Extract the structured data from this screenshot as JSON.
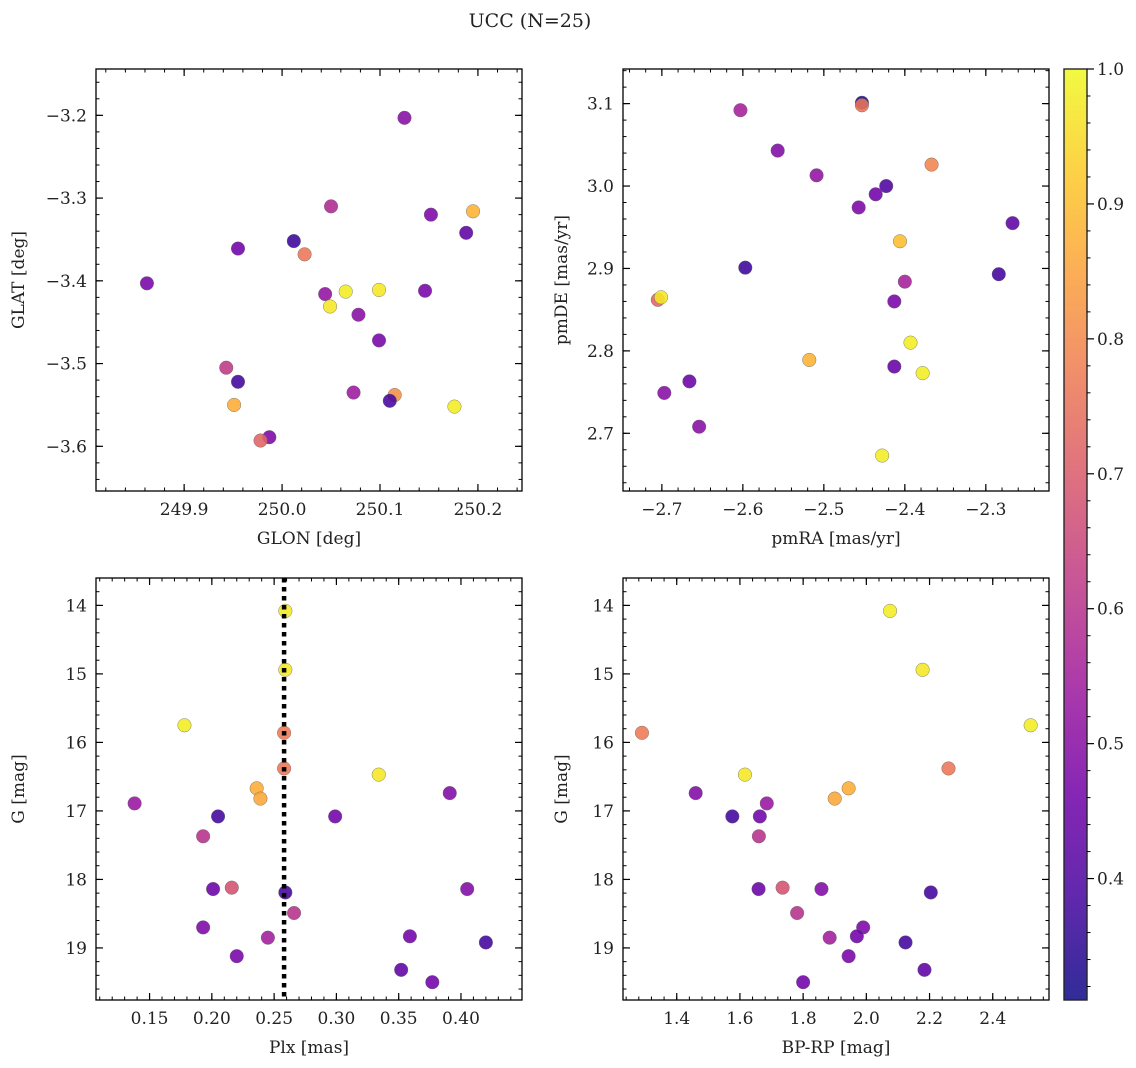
{
  "title": "UCC (N=25)",
  "colorbar": {
    "colormap": "plasma",
    "range": [
      0.31,
      1.0
    ],
    "ticks": [
      0.4,
      0.5,
      0.6,
      0.7,
      0.8,
      0.9,
      1.0
    ],
    "tick_labels": [
      "0.4",
      "0.5",
      "0.6",
      "0.7",
      "0.8",
      "0.9",
      "1.0"
    ]
  },
  "chart_data": [
    {
      "type": "scatter",
      "xlabel": "GLON [deg]",
      "ylabel": "GLAT [deg]",
      "xlim": [
        249.81,
        250.245
      ],
      "ylim": [
        -3.654,
        -3.144
      ],
      "xticks": [
        249.9,
        250.0,
        250.1,
        250.2
      ],
      "xtick_labels": [
        "249.9",
        "250.0",
        "250.1",
        "250.2"
      ],
      "yticks": [
        -3.6,
        -3.5,
        -3.4,
        -3.3,
        -3.2
      ],
      "ytick_labels": [
        "−3.6",
        "−3.5",
        "−3.4",
        "−3.3",
        "−3.2"
      ],
      "points": [
        {
          "x": 250.125,
          "y": -3.203,
          "c": 0.5
        },
        {
          "x": 250.05,
          "y": -3.31,
          "c": 0.58
        },
        {
          "x": 250.195,
          "y": -3.316,
          "c": 0.88
        },
        {
          "x": 250.152,
          "y": -3.32,
          "c": 0.48
        },
        {
          "x": 250.188,
          "y": -3.342,
          "c": 0.43
        },
        {
          "x": 250.012,
          "y": -3.352,
          "c": 0.37
        },
        {
          "x": 249.955,
          "y": -3.361,
          "c": 0.46
        },
        {
          "x": 250.023,
          "y": -3.368,
          "c": 0.76
        },
        {
          "x": 249.862,
          "y": -3.403,
          "c": 0.47
        },
        {
          "x": 250.099,
          "y": -3.411,
          "c": 0.97
        },
        {
          "x": 250.146,
          "y": -3.412,
          "c": 0.47
        },
        {
          "x": 250.065,
          "y": -3.413,
          "c": 0.98
        },
        {
          "x": 250.044,
          "y": -3.416,
          "c": 0.52
        },
        {
          "x": 250.049,
          "y": -3.431,
          "c": 0.97
        },
        {
          "x": 250.078,
          "y": -3.441,
          "c": 0.5
        },
        {
          "x": 250.099,
          "y": -3.472,
          "c": 0.47
        },
        {
          "x": 249.943,
          "y": -3.505,
          "c": 0.62
        },
        {
          "x": 249.955,
          "y": -3.522,
          "c": 0.38
        },
        {
          "x": 250.073,
          "y": -3.535,
          "c": 0.54
        },
        {
          "x": 250.115,
          "y": -3.538,
          "c": 0.81
        },
        {
          "x": 250.11,
          "y": -3.545,
          "c": 0.39
        },
        {
          "x": 249.951,
          "y": -3.55,
          "c": 0.87
        },
        {
          "x": 250.176,
          "y": -3.552,
          "c": 0.98
        },
        {
          "x": 249.987,
          "y": -3.589,
          "c": 0.48
        },
        {
          "x": 249.978,
          "y": -3.593,
          "c": 0.72
        }
      ]
    },
    {
      "type": "scatter",
      "xlabel": "pmRA [mas/yr]",
      "ylabel": "pmDE [mas/yr]",
      "xlim": [
        -2.748,
        -2.222
      ],
      "ylim": [
        2.63,
        3.142
      ],
      "xticks": [
        -2.7,
        -2.6,
        -2.5,
        -2.4,
        -2.3
      ],
      "xtick_labels": [
        "−2.7",
        "−2.6",
        "−2.5",
        "−2.4",
        "−2.3"
      ],
      "yticks": [
        2.7,
        2.8,
        2.9,
        3.0,
        3.1
      ],
      "ytick_labels": [
        "2.7",
        "2.8",
        "2.9",
        "3.0",
        "3.1"
      ],
      "points": [
        {
          "x": -2.453,
          "y": 3.101,
          "c": 0.33
        },
        {
          "x": -2.453,
          "y": 3.098,
          "c": 0.76
        },
        {
          "x": -2.603,
          "y": 3.092,
          "c": 0.56
        },
        {
          "x": -2.557,
          "y": 3.043,
          "c": 0.49
        },
        {
          "x": -2.367,
          "y": 3.026,
          "c": 0.79
        },
        {
          "x": -2.509,
          "y": 3.013,
          "c": 0.52
        },
        {
          "x": -2.423,
          "y": 3.0,
          "c": 0.4
        },
        {
          "x": -2.436,
          "y": 2.99,
          "c": 0.46
        },
        {
          "x": -2.457,
          "y": 2.974,
          "c": 0.48
        },
        {
          "x": -2.267,
          "y": 2.955,
          "c": 0.43
        },
        {
          "x": -2.406,
          "y": 2.933,
          "c": 0.9
        },
        {
          "x": -2.597,
          "y": 2.901,
          "c": 0.37
        },
        {
          "x": -2.284,
          "y": 2.893,
          "c": 0.38
        },
        {
          "x": -2.4,
          "y": 2.884,
          "c": 0.56
        },
        {
          "x": -2.705,
          "y": 2.862,
          "c": 0.72
        },
        {
          "x": -2.701,
          "y": 2.865,
          "c": 0.97
        },
        {
          "x": -2.413,
          "y": 2.86,
          "c": 0.47
        },
        {
          "x": -2.393,
          "y": 2.81,
          "c": 0.98
        },
        {
          "x": -2.518,
          "y": 2.789,
          "c": 0.88
        },
        {
          "x": -2.413,
          "y": 2.781,
          "c": 0.44
        },
        {
          "x": -2.378,
          "y": 2.773,
          "c": 0.98
        },
        {
          "x": -2.666,
          "y": 2.763,
          "c": 0.45
        },
        {
          "x": -2.697,
          "y": 2.749,
          "c": 0.5
        },
        {
          "x": -2.654,
          "y": 2.708,
          "c": 0.5
        },
        {
          "x": -2.428,
          "y": 2.673,
          "c": 0.98
        }
      ]
    },
    {
      "type": "scatter",
      "xlabel": "Plx [mas]",
      "ylabel": "G [mag]",
      "xlim": [
        0.107,
        0.449
      ],
      "ylim": [
        19.76,
        13.6
      ],
      "y_inverted": true,
      "vline": {
        "x": 0.258,
        "style": "dotted",
        "color": "#000000"
      },
      "xticks": [
        0.15,
        0.2,
        0.25,
        0.3,
        0.35,
        0.4
      ],
      "xtick_labels": [
        "0.15",
        "0.20",
        "0.25",
        "0.30",
        "0.35",
        "0.40"
      ],
      "yticks": [
        14,
        15,
        16,
        17,
        18,
        19
      ],
      "ytick_labels": [
        "14",
        "15",
        "16",
        "17",
        "18",
        "19"
      ],
      "points": [
        {
          "x": 0.259,
          "y": 14.08,
          "c": 0.98
        },
        {
          "x": 0.259,
          "y": 14.94,
          "c": 0.97
        },
        {
          "x": 0.178,
          "y": 15.75,
          "c": 0.98
        },
        {
          "x": 0.258,
          "y": 15.86,
          "c": 0.77
        },
        {
          "x": 0.258,
          "y": 16.38,
          "c": 0.76
        },
        {
          "x": 0.334,
          "y": 16.47,
          "c": 0.97
        },
        {
          "x": 0.236,
          "y": 16.67,
          "c": 0.87
        },
        {
          "x": 0.391,
          "y": 16.74,
          "c": 0.49
        },
        {
          "x": 0.239,
          "y": 16.82,
          "c": 0.86
        },
        {
          "x": 0.138,
          "y": 16.89,
          "c": 0.53
        },
        {
          "x": 0.205,
          "y": 17.08,
          "c": 0.38
        },
        {
          "x": 0.299,
          "y": 17.08,
          "c": 0.46
        },
        {
          "x": 0.193,
          "y": 17.37,
          "c": 0.6
        },
        {
          "x": 0.216,
          "y": 18.12,
          "c": 0.68
        },
        {
          "x": 0.201,
          "y": 18.14,
          "c": 0.45
        },
        {
          "x": 0.405,
          "y": 18.14,
          "c": 0.49
        },
        {
          "x": 0.259,
          "y": 18.19,
          "c": 0.38
        },
        {
          "x": 0.266,
          "y": 18.49,
          "c": 0.6
        },
        {
          "x": 0.193,
          "y": 18.7,
          "c": 0.48
        },
        {
          "x": 0.245,
          "y": 18.85,
          "c": 0.55
        },
        {
          "x": 0.359,
          "y": 18.83,
          "c": 0.46
        },
        {
          "x": 0.42,
          "y": 18.92,
          "c": 0.38
        },
        {
          "x": 0.22,
          "y": 19.12,
          "c": 0.47
        },
        {
          "x": 0.352,
          "y": 19.32,
          "c": 0.43
        },
        {
          "x": 0.377,
          "y": 19.5,
          "c": 0.46
        }
      ]
    },
    {
      "type": "scatter",
      "xlabel": "BP-RP [mag]",
      "ylabel": "G [mag]",
      "xlim": [
        1.23,
        2.578
      ],
      "ylim": [
        19.76,
        13.6
      ],
      "y_inverted": true,
      "xticks": [
        1.4,
        1.6,
        1.8,
        2.0,
        2.2,
        2.4
      ],
      "xtick_labels": [
        "1.4",
        "1.6",
        "1.8",
        "2.0",
        "2.2",
        "2.4"
      ],
      "yticks": [
        14,
        15,
        16,
        17,
        18,
        19
      ],
      "ytick_labels": [
        "14",
        "15",
        "16",
        "17",
        "18",
        "19"
      ],
      "points": [
        {
          "x": 2.075,
          "y": 14.08,
          "c": 0.98
        },
        {
          "x": 2.178,
          "y": 14.94,
          "c": 0.97
        },
        {
          "x": 2.52,
          "y": 15.75,
          "c": 0.98
        },
        {
          "x": 1.29,
          "y": 15.86,
          "c": 0.77
        },
        {
          "x": 2.26,
          "y": 16.38,
          "c": 0.76
        },
        {
          "x": 1.616,
          "y": 16.47,
          "c": 0.97
        },
        {
          "x": 1.944,
          "y": 16.67,
          "c": 0.87
        },
        {
          "x": 1.46,
          "y": 16.74,
          "c": 0.49
        },
        {
          "x": 1.9,
          "y": 16.82,
          "c": 0.86
        },
        {
          "x": 1.685,
          "y": 16.89,
          "c": 0.53
        },
        {
          "x": 1.576,
          "y": 17.08,
          "c": 0.38
        },
        {
          "x": 1.663,
          "y": 17.08,
          "c": 0.46
        },
        {
          "x": 1.66,
          "y": 17.37,
          "c": 0.6
        },
        {
          "x": 1.735,
          "y": 18.12,
          "c": 0.68
        },
        {
          "x": 1.659,
          "y": 18.14,
          "c": 0.45
        },
        {
          "x": 1.858,
          "y": 18.14,
          "c": 0.49
        },
        {
          "x": 2.204,
          "y": 18.19,
          "c": 0.38
        },
        {
          "x": 1.781,
          "y": 18.49,
          "c": 0.6
        },
        {
          "x": 1.99,
          "y": 18.7,
          "c": 0.48
        },
        {
          "x": 1.884,
          "y": 18.85,
          "c": 0.55
        },
        {
          "x": 1.97,
          "y": 18.83,
          "c": 0.46
        },
        {
          "x": 2.124,
          "y": 18.92,
          "c": 0.38
        },
        {
          "x": 1.944,
          "y": 19.12,
          "c": 0.47
        },
        {
          "x": 2.184,
          "y": 19.32,
          "c": 0.43
        },
        {
          "x": 1.8,
          "y": 19.5,
          "c": 0.46
        }
      ]
    }
  ]
}
